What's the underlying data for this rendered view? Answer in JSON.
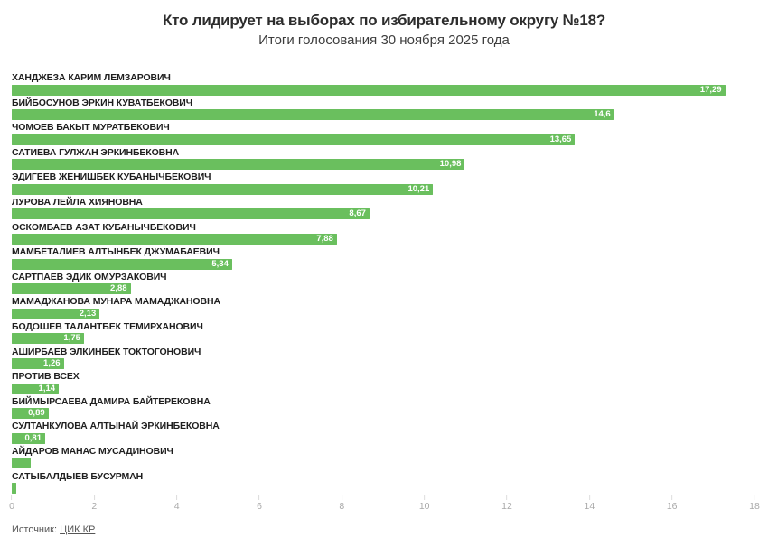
{
  "chart_data": {
    "type": "bar",
    "orientation": "horizontal",
    "title": "Кто лидирует на выборах по избирательному округу №18?",
    "subtitle": "Итоги голосования 30 ноября 2025 года",
    "unit": "percent",
    "decimal_separator": ",",
    "xlabel": "",
    "ylabel": "",
    "xlim": [
      0,
      18
    ],
    "x_ticks": [
      0,
      2,
      4,
      6,
      8,
      10,
      12,
      14,
      16,
      18
    ],
    "grid": "off",
    "legend": "none",
    "bar_color": "#6abf5e",
    "value_label_color": "#ffffff",
    "categories": [
      "ХАНДЖЕЗА КАРИМ ЛЕМЗАРОВИЧ",
      "БИЙБОСУНОВ ЭРКИН КУВАТБЕКОВИЧ",
      "ЧОМОЕВ БАКЫТ МУРАТБЕКОВИЧ",
      "САТИЕВА ГУЛЖАН ЭРКИНБЕКОВНА",
      "ЭДИГЕЕВ ЖЕНИШБЕК КУБАНЫЧБЕКОВИЧ",
      "ЛУРОВА ЛЕЙЛА ХИЯНОВНА",
      "ОСКОМБАЕВ АЗАТ КУБАНЫЧБЕКОВИЧ",
      "МАМБЕТАЛИЕВ АЛТЫНБЕК ДЖУМАБАЕВИЧ",
      "САРТПАЕВ ЭДИК ОМУРЗАКОВИЧ",
      "МАМАДЖАНОВА МУНАРА МАМАДЖАНОВНА",
      "БОДОШЕВ ТАЛАНТБЕК ТЕМИРХАНОВИЧ",
      "АШИРБАЕВ ЭЛКИНБЕК ТОКТОГОНОВИЧ",
      "ПРОТИВ ВСЕХ",
      "БИЙМЫРСАЕВА ДАМИРА БАЙТЕРЕКОВНА",
      "СУЛТАНКУЛОВА АЛТЫНАЙ ЭРКИНБЕКОВНА",
      "АЙДАРОВ МАНАС МУСАДИНОВИЧ",
      "САТЫБАЛДЫЕВ БУСУРМАН"
    ],
    "values": [
      17.29,
      14.6,
      13.65,
      10.98,
      10.21,
      8.67,
      7.88,
      5.34,
      2.88,
      2.13,
      1.75,
      1.26,
      1.14,
      0.89,
      0.81,
      0.46,
      0.11
    ],
    "value_labels": [
      "17,29",
      "14,6",
      "13,65",
      "10,98",
      "10,21",
      "8,67",
      "7,88",
      "5,34",
      "2,88",
      "2,13",
      "1,75",
      "1,26",
      "1,14",
      "0,89",
      "0,81",
      "",
      ""
    ]
  },
  "footer": {
    "source_prefix": "Источник: ",
    "source_link_label": "ЦИК КР"
  }
}
